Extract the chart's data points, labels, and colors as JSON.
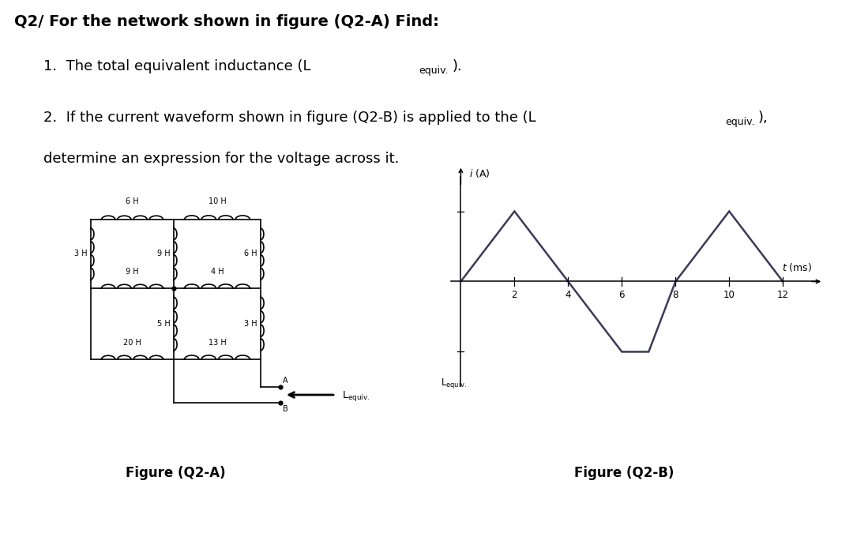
{
  "title": "Q2/ For the network shown in figure (Q2-A) Find:",
  "item1_prefix": "1.  The total equivalent inductance (L",
  "item1_sub": "equiv.",
  "item1_suffix": ").",
  "item2_prefix": "2.  If the current waveform shown in figure (Q2-B) is applied to the (L",
  "item2_sub": "equiv.",
  "item2_suffix": "),",
  "item3": "determine an expression for the voltage across it.",
  "fig_a_label": "Figure (Q2-A)",
  "fig_b_label": "Figure (Q2-B)",
  "waveform_x": [
    0,
    2,
    4,
    6,
    7,
    8,
    10,
    12
  ],
  "waveform_y": [
    0,
    1,
    0,
    -1,
    -1,
    0,
    1,
    0
  ],
  "waveform_color": "#3a3a5a",
  "bg_color": "#ffffff",
  "text_color": "#000000",
  "circuit_color": "#000000",
  "title_fontsize": 14,
  "body_fontsize": 13,
  "sub_fontsize": 9,
  "circuit_lw": 1.2,
  "wave_lw": 1.8
}
